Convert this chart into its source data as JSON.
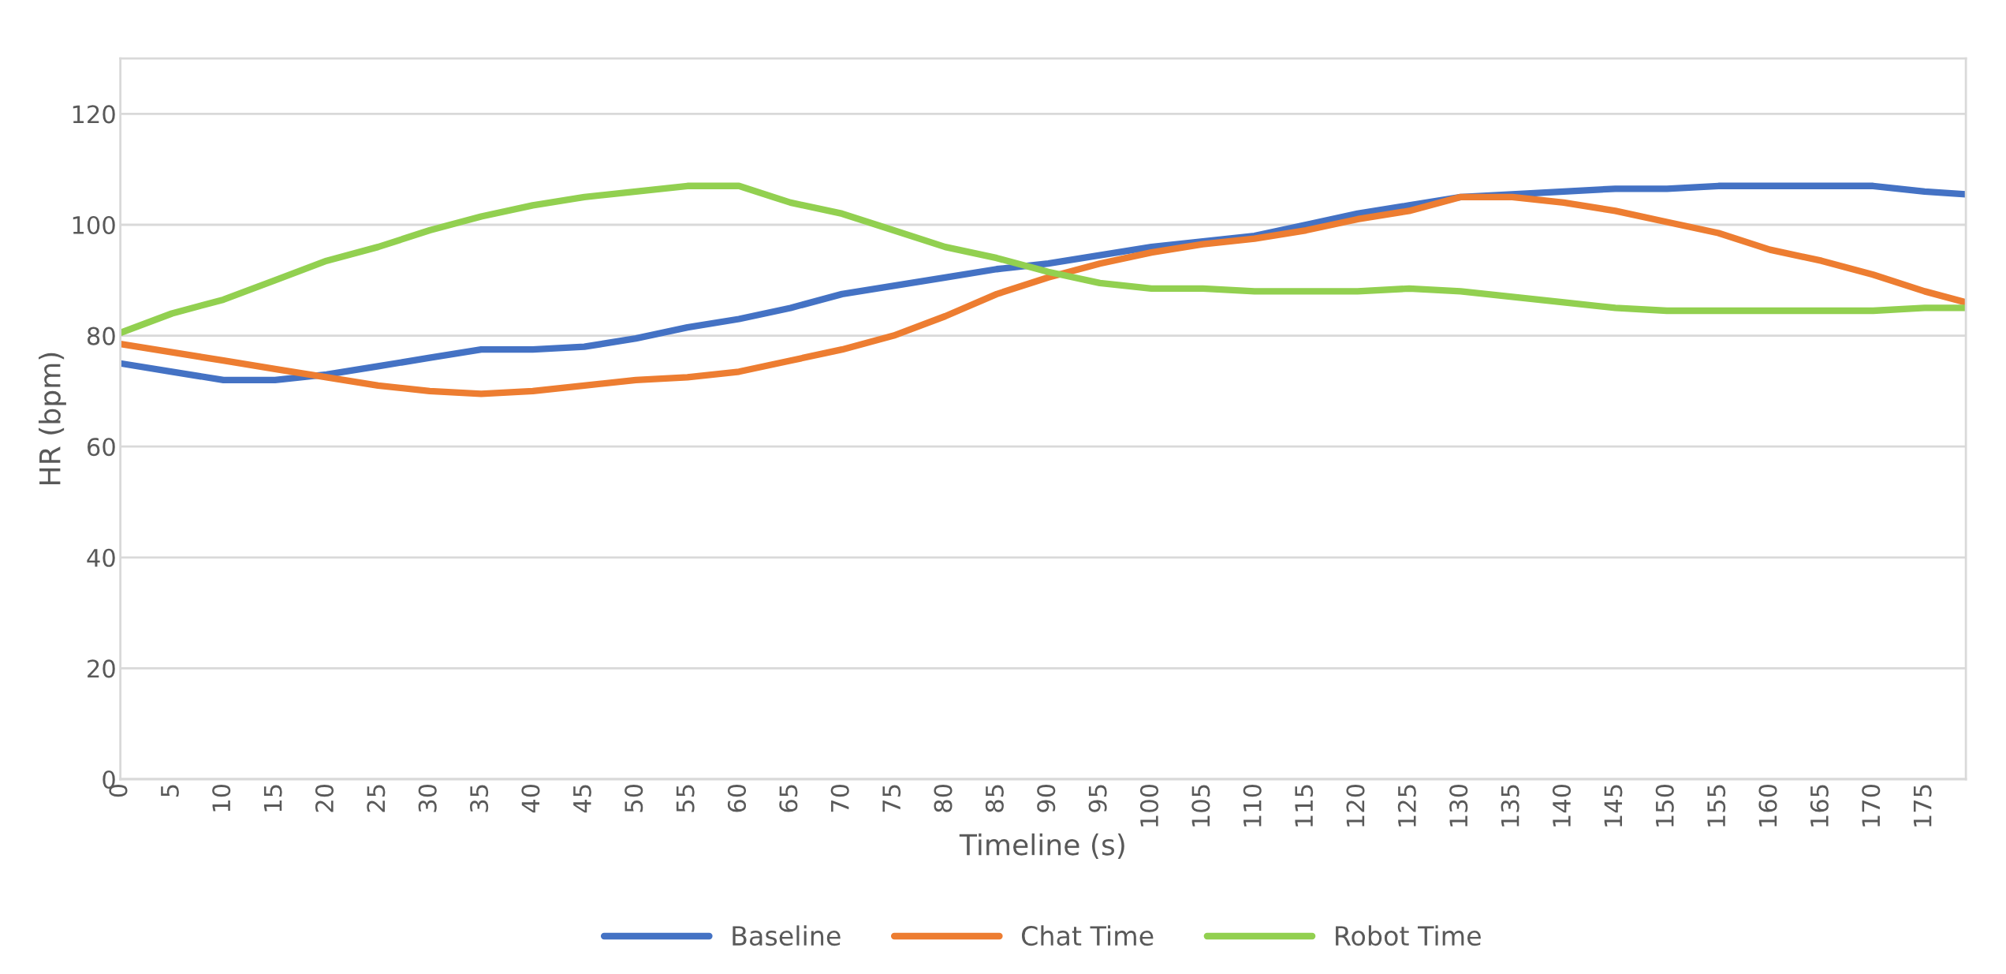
{
  "chart_data": {
    "type": "line",
    "xlabel": "Timeline (s)",
    "ylabel": "HR (bpm)",
    "x": [
      0,
      5,
      10,
      15,
      20,
      25,
      30,
      35,
      40,
      45,
      50,
      55,
      60,
      65,
      70,
      75,
      80,
      85,
      90,
      95,
      100,
      105,
      110,
      115,
      120,
      125,
      130,
      135,
      140,
      145,
      150,
      155,
      160,
      165,
      170,
      175,
      179
    ],
    "series": [
      {
        "name": "Baseline",
        "color": "#4472c4",
        "values": [
          75,
          73.5,
          72,
          72,
          73,
          74.5,
          76,
          77.5,
          77.5,
          78,
          79.5,
          81.5,
          83,
          85,
          87.5,
          89,
          90.5,
          92,
          93,
          94.5,
          96,
          97,
          98,
          100,
          102,
          103.5,
          105,
          105.5,
          106,
          106.5,
          106.5,
          107,
          107,
          107,
          107,
          106,
          105.5
        ]
      },
      {
        "name": "Chat Time",
        "color": "#ed7d31",
        "values": [
          78.5,
          77,
          75.5,
          74,
          72.5,
          71,
          70,
          69.5,
          70,
          71,
          72,
          72.5,
          73.5,
          75.5,
          77.5,
          80,
          83.5,
          87.5,
          90.5,
          93,
          95,
          96.5,
          97.5,
          99,
          101,
          102.5,
          105,
          105,
          104,
          102.5,
          100.5,
          98.5,
          95.5,
          93.5,
          91,
          88,
          86
        ]
      },
      {
        "name": "Robot Time",
        "color": "#92d050",
        "values": [
          80.5,
          84,
          86.5,
          90,
          93.5,
          96,
          99,
          101.5,
          103.5,
          105,
          106,
          107,
          107,
          104,
          102,
          99,
          96,
          94,
          91.5,
          89.5,
          88.5,
          88.5,
          88,
          88,
          88,
          88.5,
          88,
          87,
          86,
          85,
          84.5,
          84.5,
          84.5,
          84.5,
          84.5,
          85,
          85
        ]
      }
    ],
    "xlim": [
      0,
      179
    ],
    "xticks": [
      0,
      5,
      10,
      15,
      20,
      25,
      30,
      35,
      40,
      45,
      50,
      55,
      60,
      65,
      70,
      75,
      80,
      85,
      90,
      95,
      100,
      105,
      110,
      115,
      120,
      125,
      130,
      135,
      140,
      145,
      150,
      155,
      160,
      165,
      170,
      175
    ],
    "ylim": [
      0,
      130
    ],
    "yticks": [
      0,
      20,
      40,
      60,
      80,
      100,
      120
    ],
    "grid": "y",
    "legend": "bottom",
    "marker": "none",
    "line_style": "solid"
  }
}
